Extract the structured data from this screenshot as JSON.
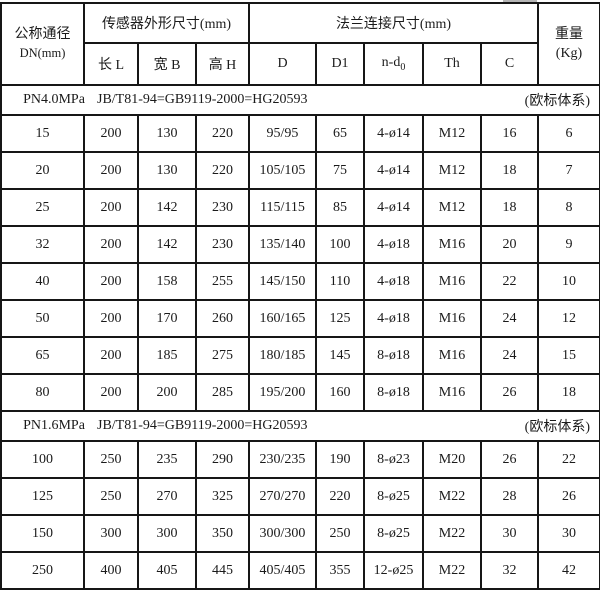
{
  "table": {
    "header": {
      "dn_line1": "公称通径",
      "dn_line2": "DN(mm)",
      "sensor_group": "传感器外形尺寸(mm)",
      "flange_group": "法兰连接尺寸(mm)",
      "weight_line1": "重量",
      "weight_line2": "(Kg)",
      "col_length": "长 L",
      "col_width": "宽 B",
      "col_height": "高 H",
      "col_d": "D",
      "col_d1": "D1",
      "col_nd0_main": "n-d",
      "col_nd0_sub": "0",
      "col_th": "Th",
      "col_c": "C"
    },
    "sections": [
      {
        "pressure": "PN4.0MPa",
        "standard": "JB/T81-94=GB9119-2000=HG20593",
        "note": "(欧标体系)",
        "rows": [
          [
            "15",
            "200",
            "130",
            "220",
            "95/95",
            "65",
            "4-ø14",
            "M12",
            "16",
            "6"
          ],
          [
            "20",
            "200",
            "130",
            "220",
            "105/105",
            "75",
            "4-ø14",
            "M12",
            "18",
            "7"
          ],
          [
            "25",
            "200",
            "142",
            "230",
            "115/115",
            "85",
            "4-ø14",
            "M12",
            "18",
            "8"
          ],
          [
            "32",
            "200",
            "142",
            "230",
            "135/140",
            "100",
            "4-ø18",
            "M16",
            "20",
            "9"
          ],
          [
            "40",
            "200",
            "158",
            "255",
            "145/150",
            "110",
            "4-ø18",
            "M16",
            "22",
            "10"
          ],
          [
            "50",
            "200",
            "170",
            "260",
            "160/165",
            "125",
            "4-ø18",
            "M16",
            "24",
            "12"
          ],
          [
            "65",
            "200",
            "185",
            "275",
            "180/185",
            "145",
            "8-ø18",
            "M16",
            "24",
            "15"
          ],
          [
            "80",
            "200",
            "200",
            "285",
            "195/200",
            "160",
            "8-ø18",
            "M16",
            "26",
            "18"
          ]
        ]
      },
      {
        "pressure": "PN1.6MPa",
        "standard": "JB/T81-94=GB9119-2000=HG20593",
        "note": "(欧标体系)",
        "rows": [
          [
            "100",
            "250",
            "235",
            "290",
            "230/235",
            "190",
            "8-ø23",
            "M20",
            "26",
            "22"
          ],
          [
            "125",
            "250",
            "270",
            "325",
            "270/270",
            "220",
            "8-ø25",
            "M22",
            "28",
            "26"
          ],
          [
            "150",
            "300",
            "300",
            "350",
            "300/300",
            "250",
            "8-ø25",
            "M22",
            "30",
            "30"
          ],
          [
            "250",
            "400",
            "405",
            "445",
            "405/405",
            "355",
            "12-ø25",
            "M22",
            "32",
            "42"
          ]
        ]
      }
    ]
  }
}
